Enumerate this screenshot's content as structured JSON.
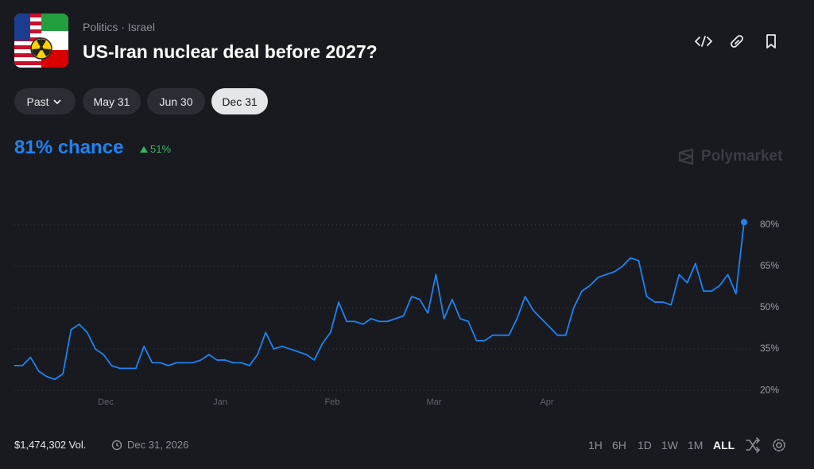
{
  "breadcrumb": [
    "Politics",
    "Israel"
  ],
  "title": "US-Iran nuclear deal before 2027?",
  "date_buttons": [
    "Past",
    "May 31",
    "Jun 30",
    "Dec 31"
  ],
  "chance": "81% chance",
  "change": "51%",
  "brand": "Polymarket",
  "volume": "$1,474,302 Vol.",
  "end_date": "Dec 31, 2026",
  "ranges": [
    "1H",
    "6H",
    "1D",
    "1W",
    "1M",
    "ALL"
  ],
  "chart_data": {
    "type": "line",
    "series": [
      {
        "name": null,
        "color": "#1f83f2",
        "values": [
          29,
          29,
          32,
          27,
          25,
          24,
          26,
          42,
          44,
          41,
          35,
          33,
          29,
          28,
          28,
          28,
          36,
          30,
          30,
          29,
          30,
          30,
          30,
          31,
          33,
          31,
          31,
          30,
          30,
          29,
          33,
          41,
          35,
          36,
          35,
          34,
          33,
          31,
          37,
          41,
          52,
          45,
          45,
          44,
          46,
          45,
          45,
          46,
          47,
          54,
          53,
          48,
          62,
          46,
          53,
          46,
          45,
          38,
          38,
          40,
          40,
          40,
          46,
          54,
          49,
          46,
          43,
          40,
          40,
          50,
          56,
          58,
          61,
          62,
          63,
          65,
          68,
          67,
          54,
          52,
          52,
          51,
          62,
          59,
          66,
          56,
          56,
          58,
          62,
          55,
          81
        ]
      }
    ],
    "xlim": [
      0,
      90
    ],
    "xticks": [
      {
        "value": 11.27,
        "label": "Dec"
      },
      {
        "value": 25.39,
        "label": "Jan"
      },
      {
        "value": 39.22,
        "label": "Feb"
      },
      {
        "value": 51.76,
        "label": "Mar"
      },
      {
        "value": 65.69,
        "label": "Apr"
      }
    ],
    "ylim": [
      16,
      84
    ],
    "yticks": [
      {
        "value": 80,
        "label": "80%"
      },
      {
        "value": 65,
        "label": "65%"
      },
      {
        "value": 50,
        "label": "50%"
      },
      {
        "value": 35,
        "label": "35%"
      },
      {
        "value": 20,
        "label": "20%"
      }
    ],
    "grid": true
  }
}
